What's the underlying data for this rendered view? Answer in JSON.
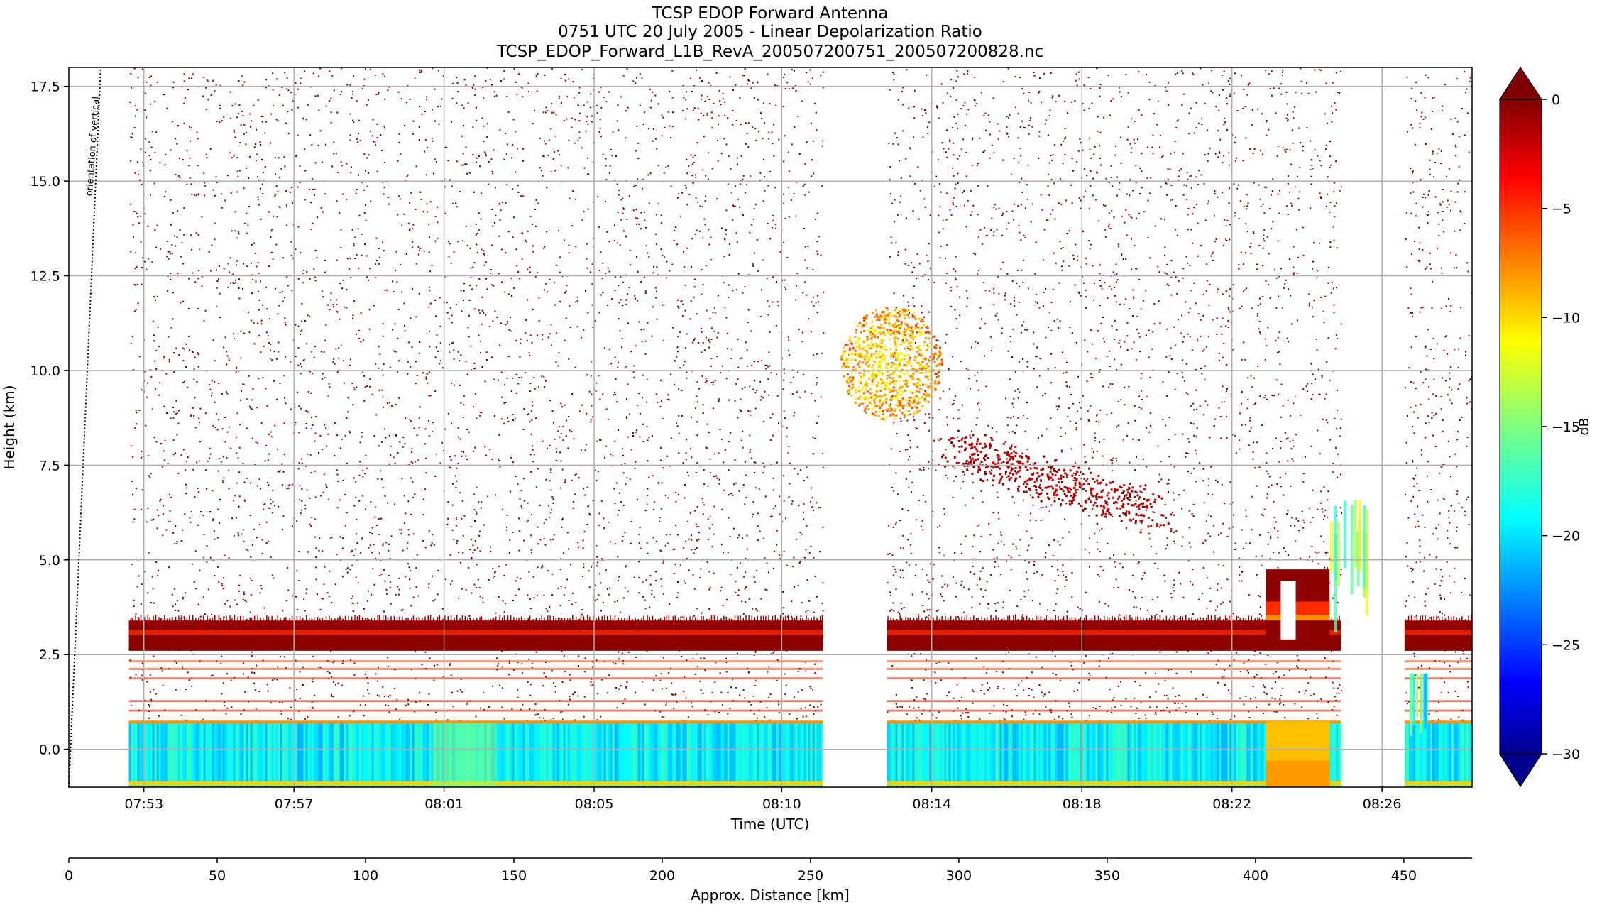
{
  "chart_data": {
    "type": "heatmap",
    "title": [
      "TCSP EDOP Forward Antenna",
      "0751 UTC 20 July 2005 - Linear Depolarization Ratio",
      "TCSP_EDOP_Forward_L1B_RevA_200507200751_200507200828.nc"
    ],
    "ylabel": "Height (km)",
    "xlabel": "Time (UTC)",
    "x2label": "Approx. Distance [km]",
    "ylim": [
      -1.0,
      18.0
    ],
    "yticks": [
      0.0,
      2.5,
      5.0,
      7.5,
      10.0,
      12.5,
      15.0,
      17.5
    ],
    "ytick_labels": [
      "0.0",
      "2.5",
      "5.0",
      "7.5",
      "10.0",
      "12.5",
      "15.0",
      "17.5"
    ],
    "time_axis_range_min": [
      471.0,
      508.4
    ],
    "time_ticks": [
      {
        "label": "07:53",
        "min": 473
      },
      {
        "label": "07:57",
        "min": 477
      },
      {
        "label": "08:01",
        "min": 481
      },
      {
        "label": "08:05",
        "min": 485
      },
      {
        "label": "08:10",
        "min": 490
      },
      {
        "label": "08:14",
        "min": 494
      },
      {
        "label": "08:18",
        "min": 498
      },
      {
        "label": "08:22",
        "min": 502
      },
      {
        "label": "08:26",
        "min": 506
      }
    ],
    "distance_range_km": [
      0,
      473
    ],
    "distance_ticks": [
      0,
      50,
      100,
      150,
      200,
      250,
      300,
      350,
      400,
      450
    ],
    "data_gaps_min": [
      [
        491.1,
        492.8
      ],
      [
        504.9,
        506.6
      ]
    ],
    "data_start_min": 472.6,
    "annotation": "orientation of vertical",
    "colorbar": {
      "label": "dB",
      "range": [
        -30,
        0
      ],
      "ticks": [
        0,
        -5,
        -10,
        -15,
        -20,
        -25,
        -30
      ],
      "tick_labels": [
        "0",
        "−5",
        "−10",
        "−15",
        "−20",
        "−25",
        "−30"
      ],
      "extend": "both",
      "colormap": "jet"
    },
    "features": [
      {
        "name": "surface band",
        "height_km": [
          -1.0,
          0.7
        ],
        "ldr_db": -19
      },
      {
        "name": "bright band / melting layer",
        "height_km": [
          2.6,
          3.4
        ],
        "ldr_db": -2
      },
      {
        "name": "noise speckle",
        "height_km": [
          0.7,
          18.0
        ],
        "ldr_db": 0
      },
      {
        "name": "upper cloud patch",
        "height_km": [
          8.5,
          11.5
        ],
        "ldr_db": -8
      },
      {
        "name": "convective cell",
        "time_min": [
          502.9,
          504.6
        ],
        "height_km": [
          3.0,
          5.7
        ],
        "ldr_db": -3
      }
    ]
  }
}
